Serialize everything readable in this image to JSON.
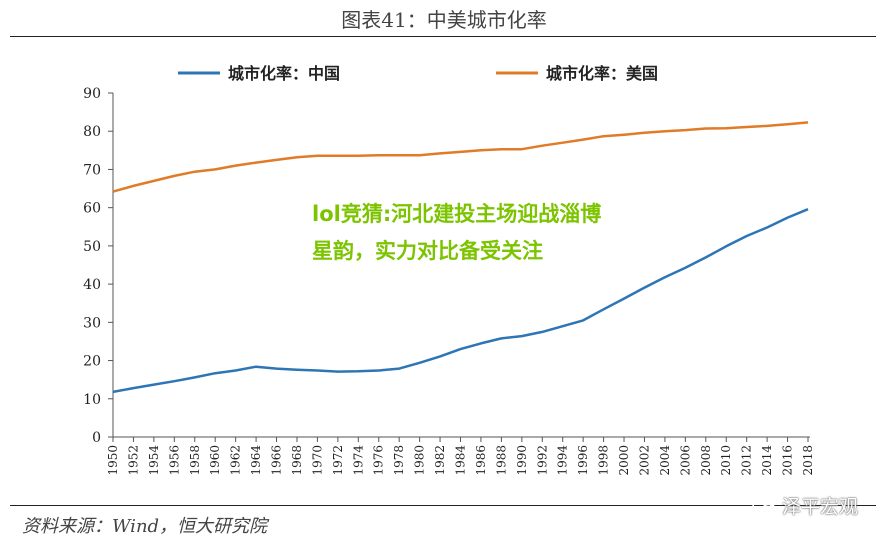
{
  "figure": {
    "title": "图表41：中美城市化率",
    "source": "资料来源：Wind，恒大研究院",
    "overlay_text": "lol竞猜:河北建投主场迎战淄博星韵，实力对比备受关注",
    "watermark": "泽平宏观"
  },
  "chart_data": {
    "type": "line",
    "x": [
      1950,
      1952,
      1954,
      1956,
      1958,
      1960,
      1962,
      1964,
      1966,
      1968,
      1970,
      1972,
      1974,
      1976,
      1978,
      1980,
      1982,
      1984,
      1986,
      1988,
      1990,
      1992,
      1994,
      1996,
      1998,
      2000,
      2002,
      2004,
      2006,
      2008,
      2010,
      2012,
      2014,
      2016,
      2018
    ],
    "x_tick_labels": [
      "1950",
      "1952",
      "1954",
      "1956",
      "1958",
      "1960",
      "1962",
      "1964",
      "1966",
      "1968",
      "1970",
      "1972",
      "1974",
      "1976",
      "1978",
      "1980",
      "1982",
      "1984",
      "1986",
      "1988",
      "1990",
      "1992",
      "1994",
      "1996",
      "1998",
      "2000",
      "2002",
      "2004",
      "2006",
      "2008",
      "2010",
      "2012",
      "2014",
      "2016",
      "2018"
    ],
    "ylim": [
      0,
      90
    ],
    "y_ticks": [
      0,
      10,
      20,
      30,
      40,
      50,
      60,
      70,
      80,
      90
    ],
    "grid": false,
    "legend_position": "top",
    "series": [
      {
        "name": "城市化率：中国",
        "color": "#2e75b6",
        "values": [
          11.8,
          12.8,
          13.7,
          14.6,
          15.6,
          16.7,
          17.4,
          18.4,
          17.9,
          17.6,
          17.4,
          17.1,
          17.2,
          17.4,
          17.9,
          19.4,
          21.1,
          23.0,
          24.5,
          25.8,
          26.4,
          27.5,
          29.0,
          30.5,
          33.4,
          36.2,
          39.1,
          41.8,
          44.3,
          47.0,
          49.9,
          52.6,
          54.8,
          57.4,
          59.6
        ]
      },
      {
        "name": "城市化率：美国",
        "color": "#e07b28",
        "values": [
          64.2,
          65.7,
          67.0,
          68.3,
          69.4,
          70.0,
          71.0,
          71.8,
          72.5,
          73.2,
          73.6,
          73.6,
          73.6,
          73.7,
          73.7,
          73.7,
          74.2,
          74.6,
          75.0,
          75.3,
          75.3,
          76.2,
          77.0,
          77.8,
          78.7,
          79.1,
          79.6,
          80.0,
          80.3,
          80.7,
          80.8,
          81.1,
          81.4,
          81.8,
          82.3
        ]
      }
    ]
  }
}
